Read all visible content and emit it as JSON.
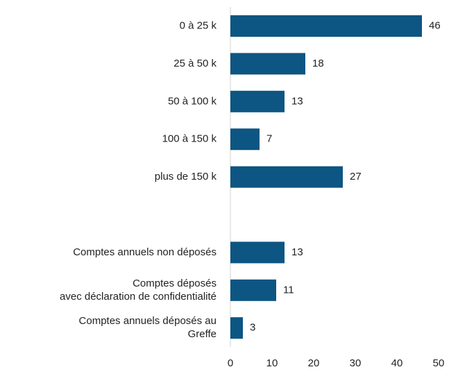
{
  "chart_data": {
    "type": "hbar",
    "categories": [
      "0 à 25 k",
      "25 à 50 k",
      "50 à 100 k",
      "100 à 150 k",
      "plus de 150 k",
      null,
      "Comptes annuels non déposés",
      "Comptes déposés\navec déclaration de confidentialité",
      "Comptes annuels déposés au\nGreffe"
    ],
    "values": [
      46,
      18,
      13,
      7,
      27,
      null,
      13,
      11,
      3
    ],
    "color": "#0d5582",
    "xlim": [
      0,
      50
    ],
    "xticks": [
      0,
      10,
      20,
      30,
      40,
      50
    ]
  }
}
